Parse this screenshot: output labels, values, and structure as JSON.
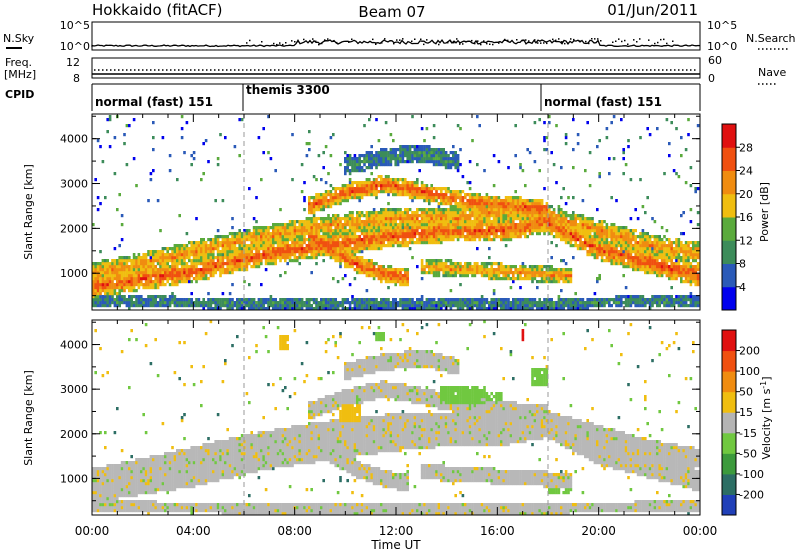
{
  "header": {
    "station": "Hokkaido (fitACF)",
    "beam": "Beam 07",
    "date": "01/Jun/2011"
  },
  "top_panels": {
    "nsky_label": "N.Sky",
    "nsearch_label": "N.Search",
    "nsky_ticks": [
      "10^5",
      "10^0"
    ],
    "nsearch_ticks": [
      "10^5",
      "10^0"
    ],
    "freq_label_1": "Freq.",
    "freq_label_2": "[MHz]",
    "freq_ticks": [
      "12",
      "8"
    ],
    "nave_label": "Nave",
    "nave_ticks": [
      "60",
      "0"
    ],
    "cpid_label": "CPID",
    "cpid_segments": [
      {
        "label": "normal (fast) 151",
        "start_h": 0,
        "end_h": 6
      },
      {
        "label": "themis 3300",
        "start_h": 6,
        "end_h": 18
      },
      {
        "label": "normal (fast) 151",
        "start_h": 18,
        "end_h": 24
      }
    ]
  },
  "x_axis": {
    "label": "Time UT",
    "ticks": [
      "00:00",
      "04:00",
      "08:00",
      "12:00",
      "16:00",
      "20:00",
      "00:00"
    ]
  },
  "colors": {
    "ground_scatter": "#b8b8b8",
    "mode_boundary": "#9a9a9a"
  },
  "chart_data": [
    {
      "type": "heatmap",
      "name": "power",
      "x_range_hours": [
        0,
        24
      ],
      "y_range_km": [
        180,
        4550
      ],
      "ylabel": "Slant Range [km]",
      "yticks": [
        1000,
        2000,
        3000,
        4000
      ],
      "colorbar": {
        "label": "Power [dB]",
        "ticks": [
          4,
          8,
          12,
          16,
          20,
          24,
          28
        ],
        "colors": [
          "#0000ee",
          "#2a5ab8",
          "#3c8c5a",
          "#5aaa3c",
          "#f0be10",
          "#f08c10",
          "#f05010",
          "#e01010"
        ]
      },
      "bands": [
        {
          "t": [
            0,
            4,
            7,
            9.5,
            12,
            14,
            16,
            18,
            20,
            22,
            24
          ],
          "r": [
            700,
            1050,
            1450,
            1650,
            1850,
            1950,
            1950,
            2150,
            1550,
            1250,
            950
          ],
          "w": 250,
          "level": 6
        },
        {
          "t": [
            0,
            3,
            6,
            8.5,
            10.5,
            12.5,
            14.5,
            17,
            19.5,
            22,
            24
          ],
          "r": [
            1000,
            1350,
            1750,
            2000,
            2150,
            2250,
            2250,
            2450,
            2050,
            1650,
            1450
          ],
          "w": 240,
          "level": 5
        },
        {
          "t": [
            8.5,
            10,
            11.5,
            13,
            14.5,
            16,
            18
          ],
          "r": [
            2500,
            2800,
            3000,
            2850,
            2650,
            2550,
            2450
          ],
          "w": 200,
          "level": 6
        },
        {
          "t": [
            8.5,
            9.5,
            10.5,
            11.5,
            12.5
          ],
          "r": [
            1900,
            1500,
            1200,
            1000,
            900
          ],
          "w": 200,
          "level": 6
        },
        {
          "t": [
            13,
            14.5,
            16,
            17.5,
            19
          ],
          "r": [
            1150,
            1100,
            1050,
            1000,
            950
          ],
          "w": 180,
          "level": 5
        },
        {
          "t": [
            0,
            6,
            12,
            18,
            24
          ],
          "r": [
            380,
            330,
            330,
            330,
            380
          ],
          "w": 130,
          "level": 2
        },
        {
          "t": [
            10,
            11.5,
            13,
            14.5
          ],
          "r": [
            3400,
            3600,
            3700,
            3500
          ],
          "w": 200,
          "level": 2
        }
      ]
    },
    {
      "type": "heatmap",
      "name": "velocity",
      "x_range_hours": [
        0,
        24
      ],
      "y_range_km": [
        180,
        4550
      ],
      "ylabel": "Slant Range [km]",
      "yticks": [
        1000,
        2000,
        3000,
        4000
      ],
      "colorbar": {
        "label": "Velocity [m s^-1]",
        "ticks": [
          200,
          100,
          50,
          15,
          -15,
          -50,
          -100,
          -200
        ],
        "colors": [
          "#2040b8",
          "#2c6e64",
          "#3c9a3c",
          "#70c840",
          "#b4b4b4",
          "#f0be10",
          "#f08c10",
          "#f05010",
          "#e01010"
        ]
      },
      "patches": [
        {
          "t0": 9.8,
          "t1": 10.6,
          "r0": 2250,
          "r1": 2650,
          "level": 5
        },
        {
          "t0": 13.8,
          "t1": 15.6,
          "r0": 2700,
          "r1": 3100,
          "level": 3
        },
        {
          "t0": 15.6,
          "t1": 16.2,
          "r0": 2750,
          "r1": 2950,
          "level": 3
        },
        {
          "t0": 17.4,
          "t1": 18.0,
          "r0": 3050,
          "r1": 3500,
          "level": 3
        },
        {
          "t0": 18.0,
          "t1": 19.0,
          "r0": 650,
          "r1": 800,
          "level": 3
        },
        {
          "t0": 7.4,
          "t1": 7.8,
          "r0": 3900,
          "r1": 4200,
          "level": 5
        },
        {
          "t0": 11.2,
          "t1": 11.6,
          "r0": 4100,
          "r1": 4300,
          "level": 3
        },
        {
          "t0": 17.0,
          "t1": 17.1,
          "r0": 4050,
          "r1": 4400,
          "level": 8
        }
      ]
    }
  ]
}
